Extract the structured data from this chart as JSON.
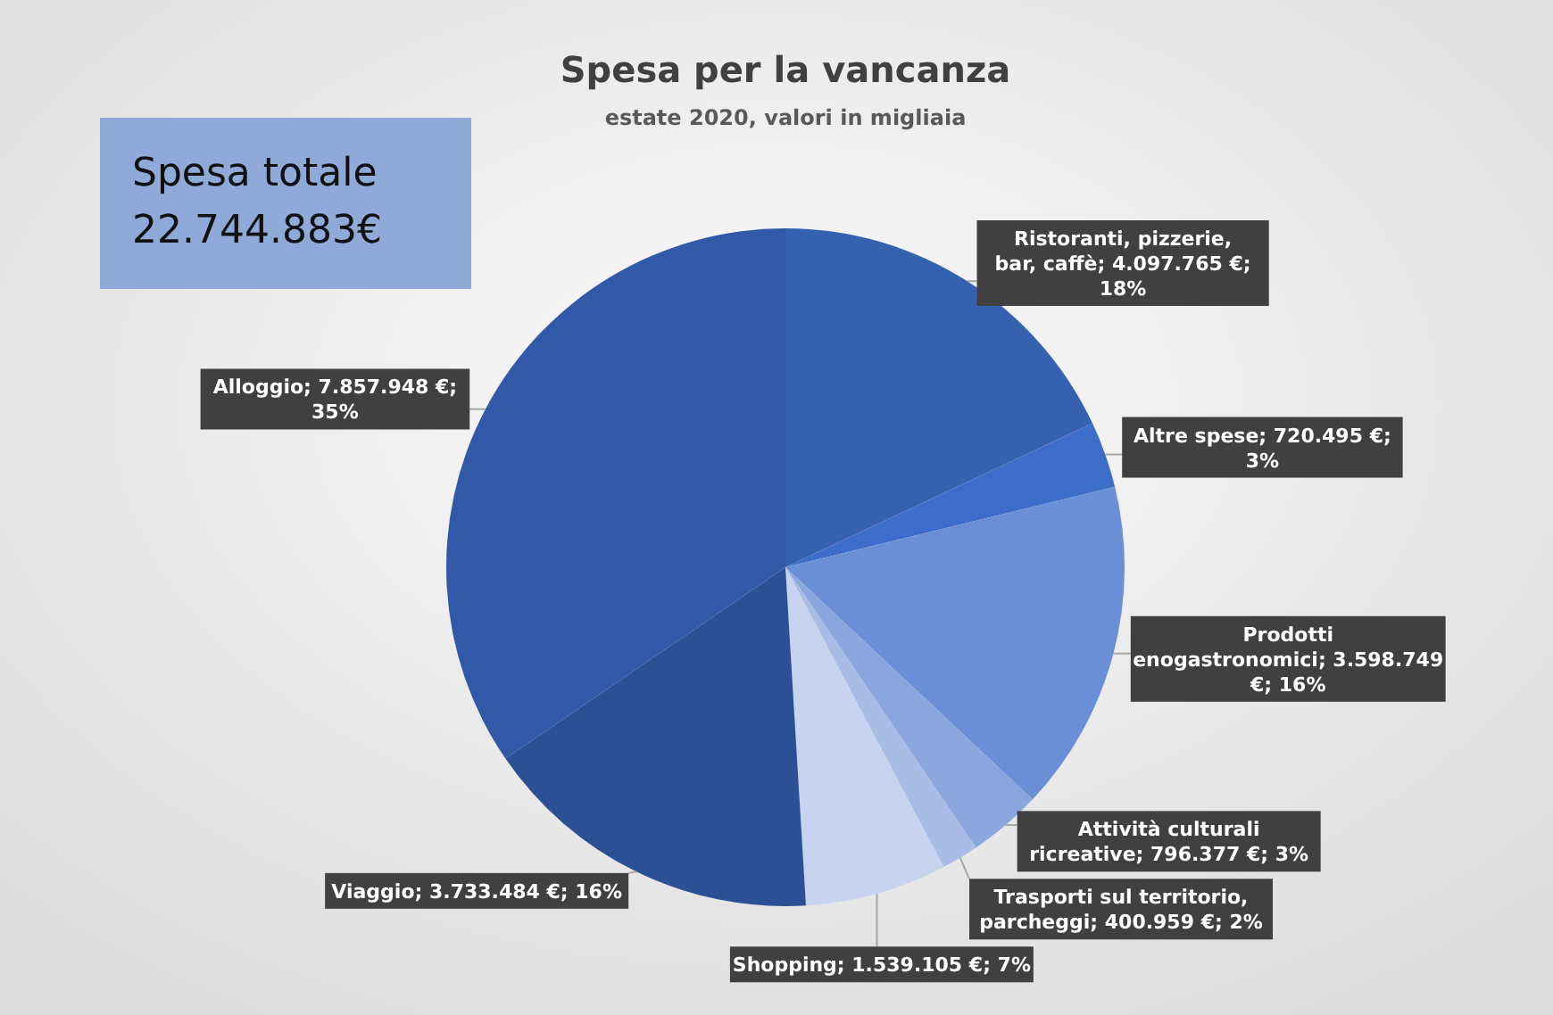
{
  "chart_data": {
    "type": "pie",
    "title": "Spesa per la vancanza",
    "subtitle": "estate 2020, valori in migliaia",
    "annotations": [
      "Spesa totale 22.744.883€"
    ],
    "categories": [
      "Ristoranti, pizzerie, bar, caffè",
      "Altre spese",
      "Prodotti enogastronomici",
      "Attività culturali ricreative",
      "Trasporti sul territorio, parcheggi",
      "Shopping",
      "Viaggio",
      "Alloggio"
    ],
    "values": [
      4097765,
      720495,
      3598749,
      796377,
      400959,
      1539105,
      3733484,
      7857948
    ],
    "value_labels": [
      "4.097.765 €; 18%",
      "720.495 €; 3%",
      "3.598.749 €; 16%",
      "796.377 €; 3%",
      "400.959 €; 2%",
      "1.539.105 €; 7%",
      "3.733.484 €; 16%",
      "7.857.948 €; 35%"
    ],
    "colors": [
      "#3561b0",
      "#3b6dc9",
      "#6a8fd6",
      "#8ba5de",
      "#a9bce6",
      "#c7d3ef",
      "#2c5095",
      "#3159a8"
    ]
  }
}
